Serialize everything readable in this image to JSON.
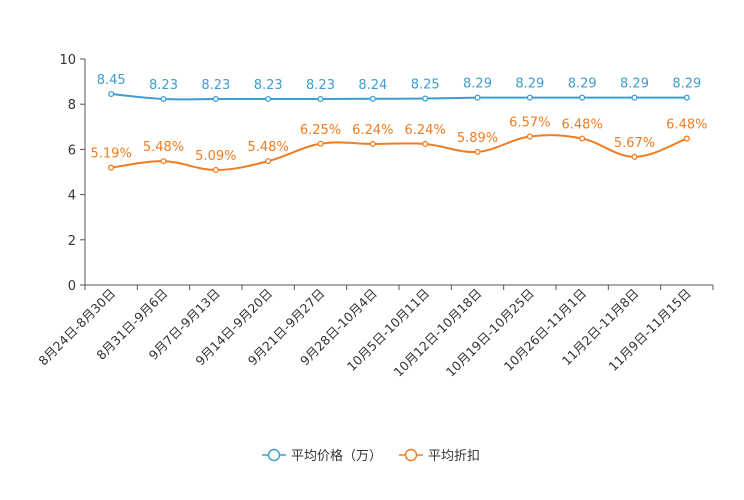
{
  "chart_data": {
    "type": "line",
    "title": "",
    "xlabel": "",
    "ylabel": "",
    "ylim": [
      0,
      10
    ],
    "yticks": [
      0,
      2,
      4,
      6,
      8,
      10
    ],
    "grid": false,
    "legend_position": "bottom-center",
    "categories": [
      "8月24日-8月30日",
      "8月31日-9月6日",
      "9月7日-9月13日",
      "9月14日-9月20日",
      "9月21日-9月27日",
      "9月28日-10月4日",
      "10月5日-10月11日",
      "10月12日-10月18日",
      "10月19日-10月25日",
      "10月26日-11月1日",
      "11月2日-11月8日",
      "11月9日-11月15日"
    ],
    "series": [
      {
        "name": "平均价格（万）",
        "color": "#3c9ed1",
        "values": [
          8.45,
          8.23,
          8.23,
          8.23,
          8.23,
          8.24,
          8.25,
          8.29,
          8.29,
          8.29,
          8.29,
          8.29
        ],
        "labels": [
          "8.45",
          "8.23",
          "8.23",
          "8.23",
          "8.23",
          "8.24",
          "8.25",
          "8.29",
          "8.29",
          "8.29",
          "8.29",
          "8.29"
        ]
      },
      {
        "name": "平均折扣",
        "color": "#f07c22",
        "values": [
          5.19,
          5.48,
          5.09,
          5.48,
          6.25,
          6.24,
          6.24,
          5.89,
          6.57,
          6.48,
          5.67,
          6.48
        ],
        "labels": [
          "5.19%",
          "5.48%",
          "5.09%",
          "5.48%",
          "6.25%",
          "6.24%",
          "6.24%",
          "5.89%",
          "6.57%",
          "6.48%",
          "5.67%",
          "6.48%"
        ]
      }
    ]
  }
}
